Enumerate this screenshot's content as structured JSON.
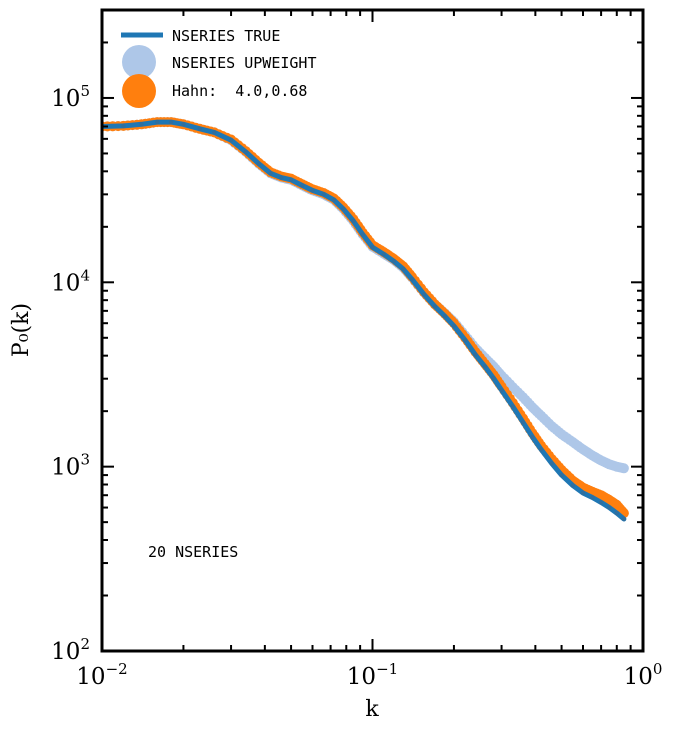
{
  "chart_data": {
    "type": "line",
    "title": "",
    "xlabel": "k",
    "ylabel": "P₀(k)",
    "xscale": "log",
    "yscale": "log",
    "xlim": [
      0.01,
      1.0
    ],
    "ylim": [
      100,
      300000
    ],
    "grid": false,
    "legend_position": "top-left",
    "x_ticks": [
      {
        "value": 0.01,
        "base": "10",
        "exp": "−2"
      },
      {
        "value": 0.1,
        "base": "10",
        "exp": "−1"
      },
      {
        "value": 1.0,
        "base": "10",
        "exp": "0"
      }
    ],
    "y_ticks": [
      {
        "value": 100,
        "base": "10",
        "exp": "2"
      },
      {
        "value": 1000,
        "base": "10",
        "exp": "3"
      },
      {
        "value": 10000,
        "base": "10",
        "exp": "4"
      },
      {
        "value": 100000,
        "base": "10",
        "exp": "5"
      }
    ],
    "annotation": "20 NSERIES",
    "series": [
      {
        "name": "NSERIES UPWEIGHT",
        "style": "markers",
        "color": "#aec7e8",
        "x": [
          0.01,
          0.012,
          0.014,
          0.016,
          0.018,
          0.02,
          0.023,
          0.026,
          0.03,
          0.034,
          0.038,
          0.042,
          0.046,
          0.05,
          0.055,
          0.06,
          0.066,
          0.072,
          0.078,
          0.085,
          0.092,
          0.1,
          0.11,
          0.12,
          0.13,
          0.14,
          0.155,
          0.17,
          0.185,
          0.2,
          0.22,
          0.24,
          0.26,
          0.28,
          0.3,
          0.33,
          0.36,
          0.39,
          0.42,
          0.46,
          0.5,
          0.55,
          0.6,
          0.65,
          0.7,
          0.75,
          0.8,
          0.85
        ],
        "y": [
          70000,
          70500,
          72000,
          74000,
          74000,
          72000,
          68000,
          65000,
          59000,
          51000,
          44000,
          39000,
          37000,
          36000,
          33500,
          31500,
          30000,
          28000,
          25000,
          21500,
          18200,
          15600,
          14300,
          13200,
          12000,
          10600,
          8800,
          7600,
          6800,
          6100,
          5150,
          4400,
          3900,
          3500,
          3120,
          2700,
          2380,
          2100,
          1890,
          1660,
          1500,
          1360,
          1240,
          1150,
          1080,
          1030,
          1000,
          980
        ]
      },
      {
        "name": "Hahn:  4.0,0.68",
        "style": "markers",
        "color": "#ff7f0e",
        "x": [
          0.01,
          0.012,
          0.014,
          0.016,
          0.018,
          0.02,
          0.023,
          0.026,
          0.03,
          0.034,
          0.038,
          0.042,
          0.046,
          0.05,
          0.055,
          0.06,
          0.066,
          0.072,
          0.078,
          0.085,
          0.092,
          0.1,
          0.11,
          0.12,
          0.13,
          0.14,
          0.155,
          0.17,
          0.185,
          0.2,
          0.22,
          0.24,
          0.26,
          0.28,
          0.3,
          0.33,
          0.36,
          0.39,
          0.42,
          0.46,
          0.5,
          0.55,
          0.6,
          0.65,
          0.7,
          0.75,
          0.8,
          0.85
        ],
        "y": [
          70000,
          70500,
          72000,
          74000,
          74000,
          72000,
          68000,
          65000,
          59500,
          51500,
          44500,
          39500,
          37500,
          36500,
          34000,
          32000,
          30500,
          28500,
          25500,
          22000,
          18600,
          15900,
          14600,
          13400,
          12200,
          10700,
          8850,
          7600,
          6750,
          6000,
          5000,
          4200,
          3620,
          3150,
          2720,
          2220,
          1830,
          1520,
          1300,
          1100,
          960,
          840,
          770,
          730,
          700,
          660,
          620,
          560
        ]
      },
      {
        "name": "NSERIES TRUE",
        "style": "line",
        "color": "#1f77b4",
        "x": [
          0.01,
          0.012,
          0.014,
          0.016,
          0.018,
          0.02,
          0.023,
          0.026,
          0.03,
          0.034,
          0.038,
          0.042,
          0.046,
          0.05,
          0.055,
          0.06,
          0.066,
          0.072,
          0.078,
          0.085,
          0.092,
          0.1,
          0.11,
          0.12,
          0.13,
          0.14,
          0.155,
          0.17,
          0.185,
          0.2,
          0.22,
          0.24,
          0.26,
          0.28,
          0.3,
          0.33,
          0.36,
          0.39,
          0.42,
          0.46,
          0.5,
          0.55,
          0.6,
          0.65,
          0.7,
          0.75,
          0.8,
          0.85
        ],
        "y": [
          70000,
          70500,
          72000,
          74000,
          74000,
          72000,
          68000,
          65000,
          59000,
          51000,
          44000,
          39000,
          37000,
          36000,
          33500,
          31500,
          30000,
          28000,
          25000,
          21500,
          18200,
          15500,
          14200,
          13000,
          11800,
          10400,
          8600,
          7400,
          6550,
          5800,
          4850,
          4050,
          3500,
          3020,
          2600,
          2120,
          1740,
          1450,
          1240,
          1040,
          900,
          790,
          720,
          680,
          640,
          600,
          560,
          520
        ]
      }
    ]
  }
}
